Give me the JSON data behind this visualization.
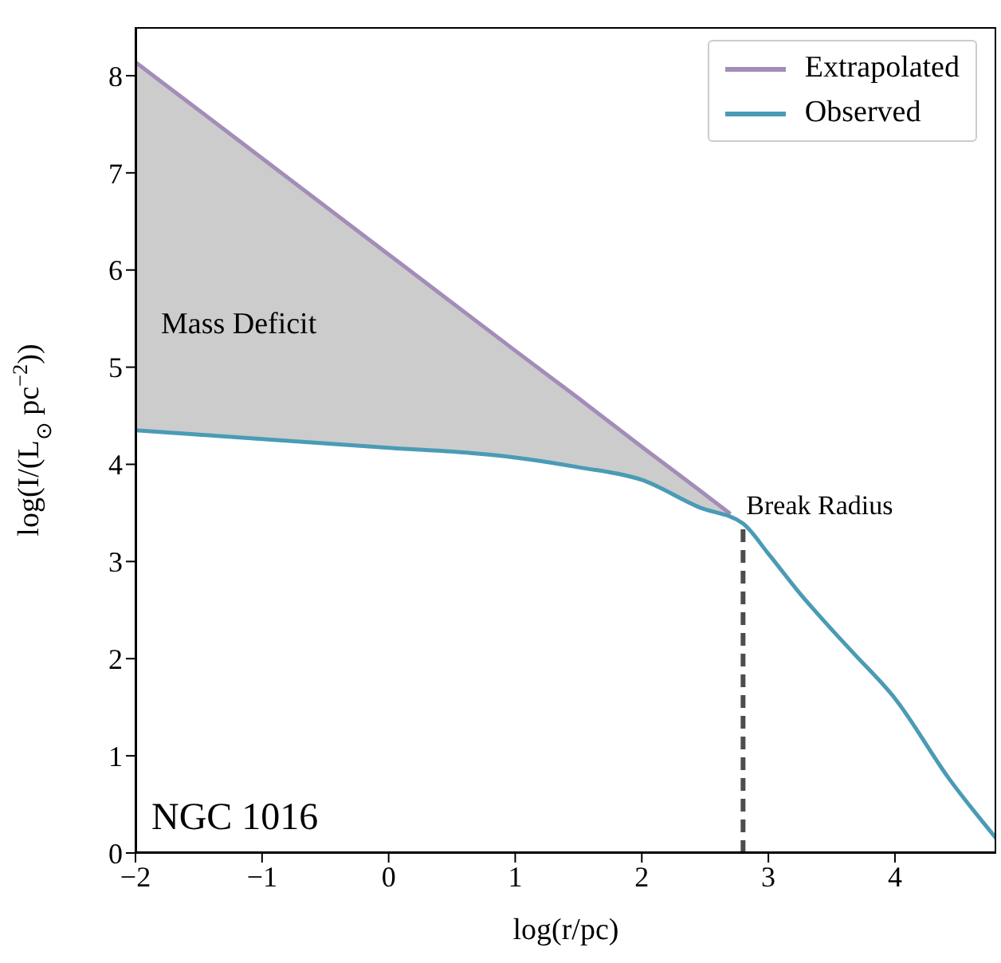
{
  "chart_data": {
    "type": "line",
    "xlabel": "log(r/pc)",
    "ylabel": "log(I/(L$_{⊙}$ pc$^{−2}$))",
    "xlim": [
      -2,
      4.8
    ],
    "xticks": [
      -2,
      -1,
      0,
      1,
      2,
      3,
      4
    ],
    "ylim": [
      0,
      8.5
    ],
    "yticks": [
      0,
      1,
      2,
      3,
      4,
      5,
      6,
      7,
      8
    ],
    "legend": "top right",
    "series": [
      {
        "name": "Extrapolated",
        "color": "#a38db8",
        "x": [
          -2,
          -1,
          0,
          1,
          1.5,
          2,
          2.45,
          2.7
        ],
        "values": [
          8.14,
          7.15,
          6.16,
          5.17,
          4.68,
          4.18,
          3.74,
          3.49
        ],
        "lower": [
          4.35,
          4.26,
          4.17,
          4.07,
          3.97,
          3.84,
          3.56,
          3.45
        ],
        "upper": [
          8.14,
          7.15,
          6.16,
          5.17,
          4.68,
          4.18,
          3.74,
          3.49
        ]
      },
      {
        "name": "Observed",
        "color": "#4a9bb5",
        "x": [
          -2,
          -1,
          0,
          0.7,
          1,
          1.5,
          2,
          2.45,
          2.8,
          3,
          3.25,
          3.5,
          3.67,
          4,
          4.43,
          4.8
        ],
        "values": [
          4.35,
          4.26,
          4.17,
          4.11,
          4.07,
          3.97,
          3.84,
          3.56,
          3.39,
          3.08,
          2.67,
          2.3,
          2.06,
          1.59,
          0.76,
          0.15
        ]
      }
    ],
    "ref_lines": [
      {
        "axis": "x",
        "value": 2.8,
        "label": "Break Radius",
        "color": "#4d4d4d",
        "line_style": "dashed"
      }
    ],
    "annotations": [
      "Mass Deficit",
      "NGC 1016"
    ]
  }
}
